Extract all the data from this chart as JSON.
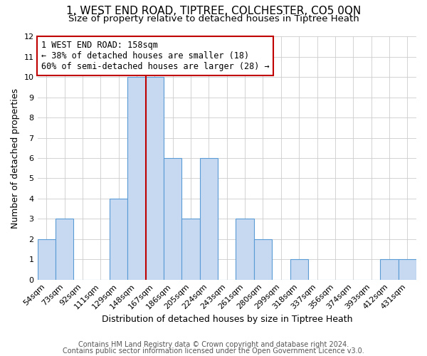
{
  "title": "1, WEST END ROAD, TIPTREE, COLCHESTER, CO5 0QN",
  "subtitle": "Size of property relative to detached houses in Tiptree Heath",
  "xlabel": "Distribution of detached houses by size in Tiptree Heath",
  "ylabel": "Number of detached properties",
  "categories": [
    "54sqm",
    "73sqm",
    "92sqm",
    "111sqm",
    "129sqm",
    "148sqm",
    "167sqm",
    "186sqm",
    "205sqm",
    "224sqm",
    "243sqm",
    "261sqm",
    "280sqm",
    "299sqm",
    "318sqm",
    "337sqm",
    "356sqm",
    "374sqm",
    "393sqm",
    "412sqm",
    "431sqm"
  ],
  "values": [
    2,
    3,
    0,
    0,
    4,
    10,
    10,
    6,
    3,
    6,
    0,
    3,
    2,
    0,
    1,
    0,
    0,
    0,
    0,
    1,
    1
  ],
  "bar_color": "#c6d9f1",
  "bar_edge_color": "#5b9bd5",
  "highlight_line_color": "#c00000",
  "annotation_box_text": "1 WEST END ROAD: 158sqm\n← 38% of detached houses are smaller (18)\n60% of semi-detached houses are larger (28) →",
  "annotation_box_color": "#c00000",
  "ylim": [
    0,
    12
  ],
  "yticks": [
    0,
    1,
    2,
    3,
    4,
    5,
    6,
    7,
    8,
    9,
    10,
    11,
    12
  ],
  "footer_line1": "Contains HM Land Registry data © Crown copyright and database right 2024.",
  "footer_line2": "Contains public sector information licensed under the Open Government Licence v3.0.",
  "bg_color": "#ffffff",
  "grid_color": "#cccccc",
  "title_fontsize": 11,
  "subtitle_fontsize": 9.5,
  "axis_label_fontsize": 9,
  "tick_fontsize": 8,
  "annotation_fontsize": 8.5,
  "footer_fontsize": 7
}
